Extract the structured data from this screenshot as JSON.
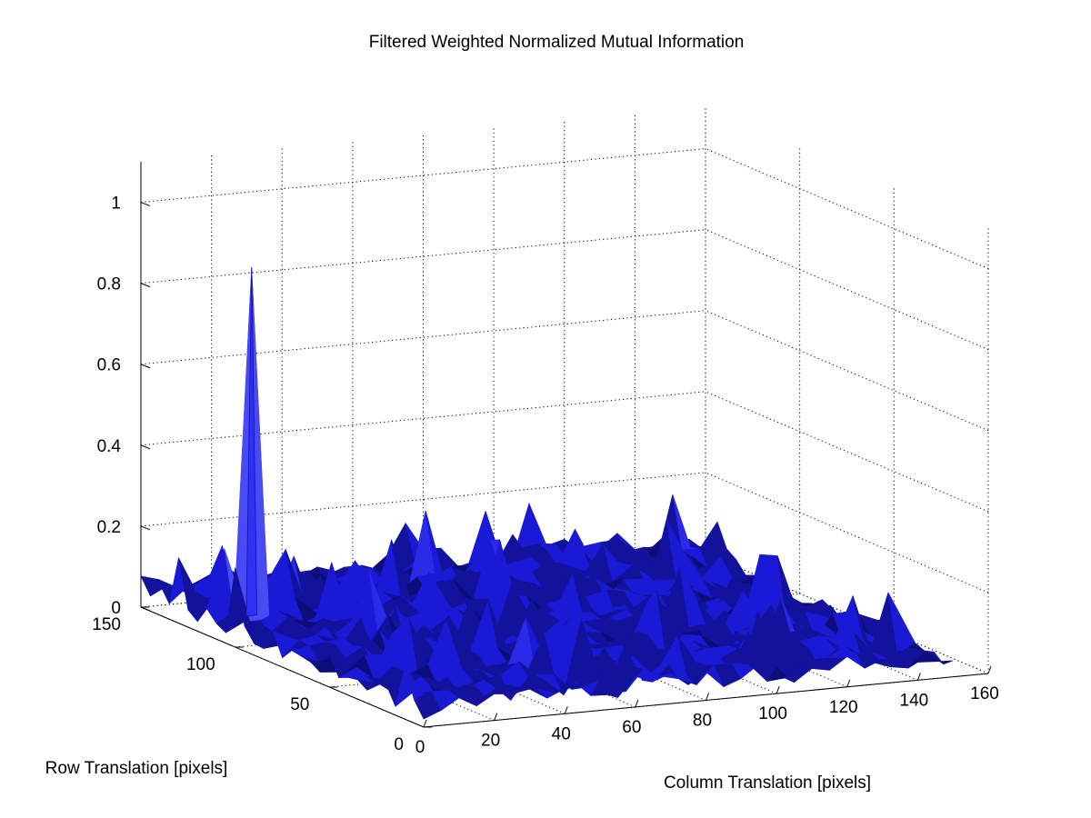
{
  "chart_data": {
    "type": "surface",
    "title": "Filtered Weighted Normalized Mutual Information",
    "xlabel": "Column Translation [pixels]",
    "ylabel": "Row Translation [pixels]",
    "zlabel": "",
    "xlim": [
      0,
      160
    ],
    "ylim": [
      0,
      150
    ],
    "zlim": [
      0,
      1.1
    ],
    "xticks": [
      0,
      20,
      40,
      60,
      80,
      100,
      120,
      140,
      160
    ],
    "yticks": [
      0,
      50,
      100,
      150
    ],
    "zticks": [
      0,
      0.2,
      0.4,
      0.6,
      0.8,
      1
    ],
    "grid": true,
    "surface_color": "#1a1ad6",
    "peak": {
      "x": 10,
      "y": 110,
      "z": 0.91
    },
    "secondary_peaks": [
      {
        "x": 63,
        "y": 140,
        "z": 0.32
      },
      {
        "x": 96,
        "y": 145,
        "z": 0.28
      },
      {
        "x": 70,
        "y": 130,
        "z": 0.22
      },
      {
        "x": 55,
        "y": 120,
        "z": 0.18
      },
      {
        "x": 30,
        "y": 125,
        "z": 0.15
      }
    ],
    "baseline_level": 0.05
  }
}
